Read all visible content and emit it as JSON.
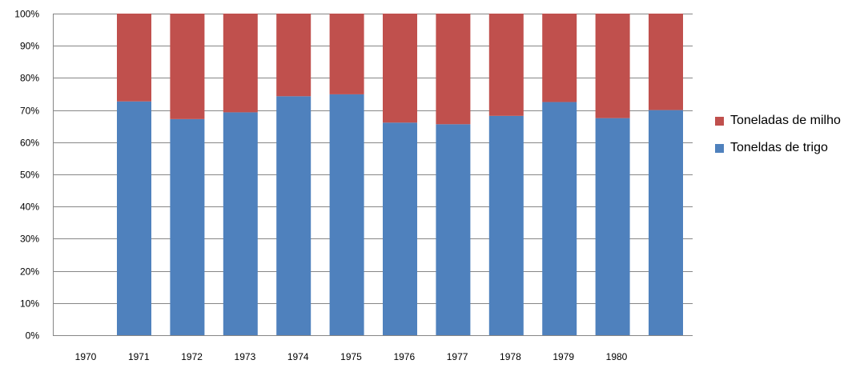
{
  "chart_data": {
    "type": "bar",
    "stacked": true,
    "percent_stacked": true,
    "title": "",
    "xlabel": "",
    "ylabel": "",
    "ylim": [
      0,
      100
    ],
    "y_ticks": [
      "0%",
      "10%",
      "20%",
      "30%",
      "40%",
      "50%",
      "60%",
      "70%",
      "80%",
      "90%",
      "100%"
    ],
    "x_tick_labels": [
      "1970",
      "1971",
      "1972",
      "1973",
      "1974",
      "1975",
      "1976",
      "1977",
      "1978",
      "1979",
      "1980"
    ],
    "grid": true,
    "legend_position": "right",
    "bars_per_share": [
      {
        "trigo": 72.7,
        "milho": 27.3
      },
      {
        "trigo": 67.2,
        "milho": 32.8
      },
      {
        "trigo": 69.3,
        "milho": 30.7
      },
      {
        "trigo": 74.3,
        "milho": 25.7
      },
      {
        "trigo": 74.9,
        "milho": 25.1
      },
      {
        "trigo": 66.1,
        "milho": 33.9
      },
      {
        "trigo": 65.6,
        "milho": 34.4
      },
      {
        "trigo": 68.2,
        "milho": 31.8
      },
      {
        "trigo": 72.5,
        "milho": 27.5
      },
      {
        "trigo": 67.5,
        "milho": 32.5
      },
      {
        "trigo": 70.0,
        "milho": 30.0
      }
    ],
    "series": [
      {
        "key": "milho",
        "name": "Toneladas de milho",
        "color": "#C0504D"
      },
      {
        "key": "trigo",
        "name": "Toneldas de trigo",
        "color": "#4F81BD"
      }
    ],
    "gridline_color": "#868686",
    "axis_color": "#868686"
  }
}
